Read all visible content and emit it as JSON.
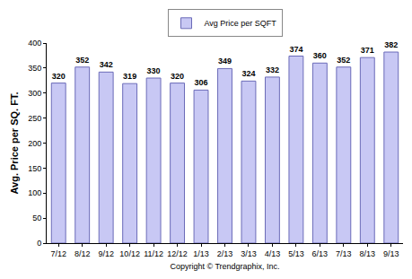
{
  "chart_data": {
    "type": "bar",
    "categories": [
      "7/12",
      "8/12",
      "9/12",
      "10/12",
      "11/12",
      "12/12",
      "1/13",
      "2/13",
      "3/13",
      "4/13",
      "5/13",
      "6/13",
      "7/13",
      "8/13",
      "9/13"
    ],
    "series": [
      {
        "name": "Avg Price per SQFT",
        "color": "#c8c8f4",
        "values": [
          320,
          352,
          342,
          319,
          330,
          320,
          306,
          349,
          324,
          332,
          374,
          360,
          352,
          371,
          382
        ]
      }
    ],
    "y_label": "Avg. Price per SQ. FT.",
    "x_label": "Copyright © Trendgraphix, Inc.",
    "ylim": [
      0,
      400
    ],
    "yticks": [
      0,
      50,
      100,
      150,
      200,
      250,
      300,
      350,
      400
    ],
    "grid": false,
    "legend": "top",
    "data_labels": true
  }
}
